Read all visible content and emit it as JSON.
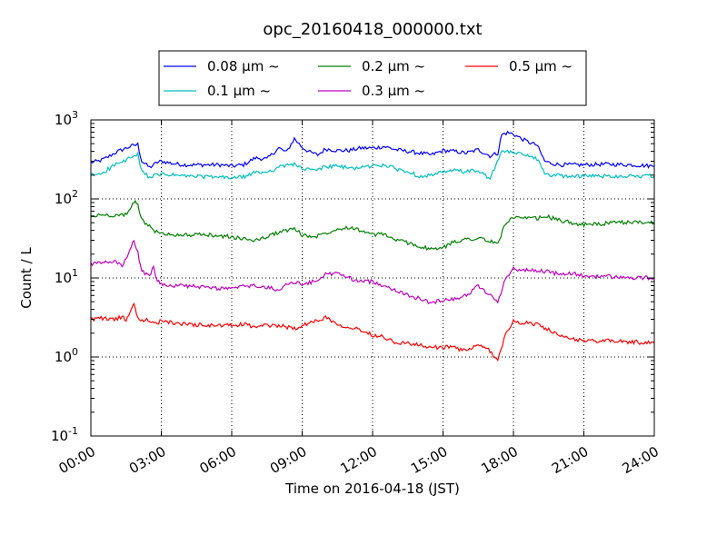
{
  "chart_data": {
    "type": "line",
    "title": "opc_20160418_000000.txt",
    "xlabel": "Time on 2016-04-18 (JST)",
    "ylabel": "Count / L",
    "y_scale": "log",
    "ylim": [
      0.1,
      1000
    ],
    "xlim": [
      "00:00",
      "24:00"
    ],
    "x_ticks": [
      "00:00",
      "03:00",
      "06:00",
      "09:00",
      "12:00",
      "15:00",
      "18:00",
      "21:00",
      "24:00"
    ],
    "y_ticks": [
      {
        "value": 0.1,
        "base": "10",
        "exp": "-1"
      },
      {
        "value": 1,
        "base": "10",
        "exp": "0"
      },
      {
        "value": 10,
        "base": "10",
        "exp": "1"
      },
      {
        "value": 100,
        "base": "10",
        "exp": "2"
      },
      {
        "value": 1000,
        "base": "10",
        "exp": "3"
      }
    ],
    "grid": true,
    "legend_position": "top-center",
    "series": [
      {
        "name": "0.08 μm ~",
        "color": "#0000ff",
        "points": [
          [
            "00:00",
            290
          ],
          [
            "00:20",
            300
          ],
          [
            "00:40",
            330
          ],
          [
            "01:00",
            380
          ],
          [
            "01:20",
            420
          ],
          [
            "01:40",
            460
          ],
          [
            "02:00",
            490
          ],
          [
            "02:10",
            300
          ],
          [
            "02:30",
            250
          ],
          [
            "02:50",
            290
          ],
          [
            "03:00",
            300
          ],
          [
            "03:30",
            280
          ],
          [
            "04:00",
            270
          ],
          [
            "05:00",
            270
          ],
          [
            "05:30",
            270
          ],
          [
            "06:00",
            260
          ],
          [
            "06:30",
            270
          ],
          [
            "07:00",
            330
          ],
          [
            "07:30",
            320
          ],
          [
            "08:00",
            440
          ],
          [
            "08:20",
            390
          ],
          [
            "08:40",
            580
          ],
          [
            "09:00",
            450
          ],
          [
            "09:20",
            390
          ],
          [
            "09:40",
            360
          ],
          [
            "10:00",
            430
          ],
          [
            "10:30",
            410
          ],
          [
            "11:00",
            410
          ],
          [
            "11:30",
            440
          ],
          [
            "12:00",
            440
          ],
          [
            "12:30",
            460
          ],
          [
            "13:00",
            420
          ],
          [
            "13:30",
            400
          ],
          [
            "14:00",
            380
          ],
          [
            "14:30",
            360
          ],
          [
            "15:00",
            410
          ],
          [
            "15:30",
            400
          ],
          [
            "16:00",
            380
          ],
          [
            "16:30",
            420
          ],
          [
            "17:00",
            350
          ],
          [
            "17:20",
            380
          ],
          [
            "17:30",
            650
          ],
          [
            "17:45",
            690
          ],
          [
            "18:00",
            660
          ],
          [
            "18:20",
            580
          ],
          [
            "18:40",
            520
          ],
          [
            "19:00",
            480
          ],
          [
            "19:20",
            300
          ],
          [
            "19:40",
            280
          ],
          [
            "20:00",
            270
          ],
          [
            "21:00",
            270
          ],
          [
            "22:00",
            275
          ],
          [
            "23:00",
            270
          ],
          [
            "23:30",
            265
          ],
          [
            "24:00",
            260
          ]
        ]
      },
      {
        "name": "0.1 μm ~",
        "color": "#00bfbf",
        "points": [
          [
            "00:00",
            200
          ],
          [
            "00:20",
            205
          ],
          [
            "00:40",
            230
          ],
          [
            "01:00",
            270
          ],
          [
            "01:20",
            290
          ],
          [
            "01:40",
            330
          ],
          [
            "02:00",
            360
          ],
          [
            "02:10",
            220
          ],
          [
            "02:30",
            190
          ],
          [
            "03:00",
            205
          ],
          [
            "03:30",
            200
          ],
          [
            "04:00",
            195
          ],
          [
            "05:00",
            190
          ],
          [
            "06:00",
            185
          ],
          [
            "06:30",
            190
          ],
          [
            "07:00",
            215
          ],
          [
            "07:30",
            220
          ],
          [
            "08:00",
            250
          ],
          [
            "08:40",
            280
          ],
          [
            "09:00",
            240
          ],
          [
            "09:30",
            230
          ],
          [
            "10:00",
            255
          ],
          [
            "10:30",
            260
          ],
          [
            "11:00",
            245
          ],
          [
            "11:30",
            250
          ],
          [
            "12:00",
            260
          ],
          [
            "12:30",
            270
          ],
          [
            "13:00",
            240
          ],
          [
            "13:30",
            220
          ],
          [
            "14:00",
            195
          ],
          [
            "14:30",
            200
          ],
          [
            "15:00",
            215
          ],
          [
            "15:30",
            230
          ],
          [
            "16:00",
            220
          ],
          [
            "16:30",
            230
          ],
          [
            "17:00",
            180
          ],
          [
            "17:30",
            390
          ],
          [
            "17:45",
            400
          ],
          [
            "18:00",
            380
          ],
          [
            "18:20",
            370
          ],
          [
            "18:40",
            360
          ],
          [
            "19:00",
            320
          ],
          [
            "19:20",
            210
          ],
          [
            "19:40",
            200
          ],
          [
            "20:00",
            195
          ],
          [
            "21:00",
            195
          ],
          [
            "22:00",
            195
          ],
          [
            "23:00",
            195
          ],
          [
            "24:00",
            195
          ]
        ]
      },
      {
        "name": "0.2 μm ~",
        "color": "#008000",
        "points": [
          [
            "00:00",
            60
          ],
          [
            "00:30",
            63
          ],
          [
            "01:00",
            62
          ],
          [
            "01:20",
            62
          ],
          [
            "01:40",
            70
          ],
          [
            "01:50",
            92
          ],
          [
            "02:00",
            85
          ],
          [
            "02:10",
            55
          ],
          [
            "02:30",
            45
          ],
          [
            "02:40",
            40
          ],
          [
            "03:00",
            36
          ],
          [
            "04:00",
            35
          ],
          [
            "05:00",
            35
          ],
          [
            "05:30",
            34
          ],
          [
            "06:00",
            33
          ],
          [
            "06:30",
            31
          ],
          [
            "07:00",
            30
          ],
          [
            "07:30",
            33
          ],
          [
            "08:00",
            38
          ],
          [
            "08:40",
            42
          ],
          [
            "09:00",
            35
          ],
          [
            "09:30",
            33
          ],
          [
            "10:00",
            37
          ],
          [
            "10:30",
            42
          ],
          [
            "11:00",
            44
          ],
          [
            "11:30",
            40
          ],
          [
            "12:00",
            35
          ],
          [
            "12:30",
            36
          ],
          [
            "13:00",
            30
          ],
          [
            "13:30",
            28
          ],
          [
            "14:00",
            25
          ],
          [
            "14:30",
            23
          ],
          [
            "15:00",
            24
          ],
          [
            "15:30",
            29
          ],
          [
            "16:00",
            31
          ],
          [
            "16:30",
            32
          ],
          [
            "17:00",
            29
          ],
          [
            "17:20",
            27
          ],
          [
            "17:40",
            50
          ],
          [
            "18:00",
            58
          ],
          [
            "18:30",
            56
          ],
          [
            "19:00",
            57
          ],
          [
            "19:30",
            59
          ],
          [
            "20:00",
            53
          ],
          [
            "20:30",
            50
          ],
          [
            "21:00",
            47
          ],
          [
            "21:30",
            48
          ],
          [
            "22:00",
            49
          ],
          [
            "23:00",
            51
          ],
          [
            "24:00",
            50
          ]
        ]
      },
      {
        "name": "0.3 μm ~",
        "color": "#bf00bf",
        "points": [
          [
            "00:00",
            15
          ],
          [
            "00:30",
            15.5
          ],
          [
            "01:00",
            16
          ],
          [
            "01:20",
            14.5
          ],
          [
            "01:30",
            17
          ],
          [
            "01:40",
            22
          ],
          [
            "01:50",
            30
          ],
          [
            "02:00",
            21
          ],
          [
            "02:10",
            12
          ],
          [
            "02:30",
            11
          ],
          [
            "02:40",
            13.5
          ],
          [
            "02:50",
            9
          ],
          [
            "03:00",
            8.5
          ],
          [
            "03:30",
            8
          ],
          [
            "04:00",
            8
          ],
          [
            "05:00",
            7.5
          ],
          [
            "06:00",
            7.3
          ],
          [
            "06:30",
            7.8
          ],
          [
            "07:00",
            8
          ],
          [
            "07:30",
            7.5
          ],
          [
            "08:00",
            7.2
          ],
          [
            "08:40",
            9
          ],
          [
            "09:00",
            8.3
          ],
          [
            "09:30",
            9
          ],
          [
            "10:00",
            11
          ],
          [
            "10:30",
            11.5
          ],
          [
            "11:00",
            10
          ],
          [
            "11:30",
            9
          ],
          [
            "12:00",
            9
          ],
          [
            "12:30",
            8
          ],
          [
            "13:00",
            7
          ],
          [
            "13:30",
            6
          ],
          [
            "14:00",
            5.5
          ],
          [
            "14:30",
            4.8
          ],
          [
            "15:00",
            5.3
          ],
          [
            "15:30",
            5.5
          ],
          [
            "16:00",
            6
          ],
          [
            "16:30",
            8
          ],
          [
            "17:00",
            6
          ],
          [
            "17:20",
            5
          ],
          [
            "17:40",
            10
          ],
          [
            "18:00",
            13
          ],
          [
            "18:30",
            12.5
          ],
          [
            "19:00",
            12.5
          ],
          [
            "19:30",
            12
          ],
          [
            "20:00",
            11
          ],
          [
            "20:30",
            11.5
          ],
          [
            "21:00",
            10.5
          ],
          [
            "22:00",
            10.5
          ],
          [
            "23:00",
            10
          ],
          [
            "24:00",
            10
          ]
        ]
      },
      {
        "name": "0.5 μm ~",
        "color": "#ff0000",
        "points": [
          [
            "00:00",
            3
          ],
          [
            "00:30",
            3.1
          ],
          [
            "01:00",
            3
          ],
          [
            "01:20",
            3.2
          ],
          [
            "01:30",
            2.9
          ],
          [
            "01:40",
            3.8
          ],
          [
            "01:50",
            4.8
          ],
          [
            "02:00",
            3.0
          ],
          [
            "02:30",
            2.9
          ],
          [
            "02:50",
            2.6
          ],
          [
            "03:00",
            2.9
          ],
          [
            "03:30",
            2.7
          ],
          [
            "04:00",
            2.6
          ],
          [
            "05:00",
            2.5
          ],
          [
            "06:00",
            2.5
          ],
          [
            "06:30",
            2.6
          ],
          [
            "07:00",
            2.4
          ],
          [
            "07:30",
            2.5
          ],
          [
            "08:00",
            2.5
          ],
          [
            "08:40",
            2.3
          ],
          [
            "09:00",
            2.5
          ],
          [
            "09:30",
            2.8
          ],
          [
            "10:00",
            3.2
          ],
          [
            "10:30",
            2.6
          ],
          [
            "11:00",
            2.4
          ],
          [
            "11:30",
            2.2
          ],
          [
            "12:00",
            1.9
          ],
          [
            "12:30",
            1.8
          ],
          [
            "13:00",
            1.5
          ],
          [
            "13:30",
            1.5
          ],
          [
            "14:00",
            1.4
          ],
          [
            "14:30",
            1.3
          ],
          [
            "15:00",
            1.35
          ],
          [
            "15:30",
            1.3
          ],
          [
            "16:00",
            1.2
          ],
          [
            "16:30",
            1.4
          ],
          [
            "17:00",
            1.2
          ],
          [
            "17:20",
            0.9
          ],
          [
            "17:40",
            2.0
          ],
          [
            "18:00",
            2.8
          ],
          [
            "18:30",
            2.7
          ],
          [
            "19:00",
            2.6
          ],
          [
            "19:30",
            2.2
          ],
          [
            "20:00",
            1.8
          ],
          [
            "20:30",
            1.7
          ],
          [
            "21:00",
            1.6
          ],
          [
            "22:00",
            1.6
          ],
          [
            "23:00",
            1.55
          ],
          [
            "24:00",
            1.5
          ]
        ]
      }
    ]
  }
}
